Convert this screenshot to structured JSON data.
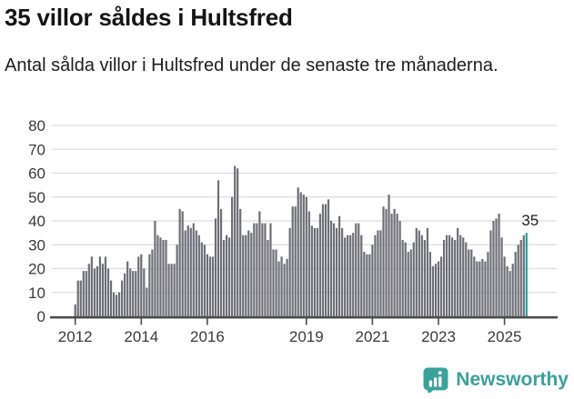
{
  "header": {
    "title": "35 villor såldes i Hultsfred",
    "subtitle": "Antal sålda villor i Hultsfred under de senaste tre månaderna."
  },
  "chart_data": {
    "type": "bar",
    "title": "35 villor såldes i Hultsfred",
    "xlabel": "",
    "ylabel": "",
    "ylim": [
      0,
      80
    ],
    "yticks": [
      0,
      10,
      20,
      30,
      40,
      50,
      60,
      70,
      80
    ],
    "grid": true,
    "x_unit": "month",
    "xticks": [
      {
        "label": "2012",
        "month_index": 0
      },
      {
        "label": "2014",
        "month_index": 24
      },
      {
        "label": "2016",
        "month_index": 48
      },
      {
        "label": "2019",
        "month_index": 84
      },
      {
        "label": "2021",
        "month_index": 108
      },
      {
        "label": "2023",
        "month_index": 132
      },
      {
        "label": "2025",
        "month_index": 156
      }
    ],
    "values": [
      5,
      15,
      15,
      19,
      19,
      22,
      25,
      20,
      21,
      25,
      22,
      25,
      20,
      15,
      10,
      9,
      10,
      15,
      18,
      23,
      20,
      19,
      19,
      25,
      26,
      20,
      12,
      26,
      28,
      40,
      34,
      33,
      32,
      32,
      22,
      22,
      22,
      30,
      45,
      44,
      36,
      38,
      37,
      39,
      36,
      34,
      31,
      30,
      26,
      25,
      25,
      41,
      57,
      45,
      32,
      34,
      33,
      50,
      63,
      62,
      45,
      34,
      34,
      36,
      35,
      39,
      39,
      44,
      39,
      39,
      32,
      39,
      28,
      28,
      23,
      25,
      22,
      24,
      37,
      46,
      46,
      54,
      52,
      51,
      50,
      44,
      38,
      37,
      37,
      43,
      47,
      47,
      49,
      40,
      39,
      37,
      42,
      37,
      33,
      34,
      34,
      35,
      39,
      39,
      34,
      27,
      26,
      26,
      30,
      34,
      36,
      36,
      46,
      45,
      51,
      43,
      45,
      43,
      40,
      32,
      31,
      27,
      28,
      31,
      37,
      36,
      34,
      32,
      37,
      27,
      21,
      22,
      23,
      25,
      32,
      34,
      34,
      33,
      32,
      37,
      34,
      33,
      31,
      28,
      28,
      25,
      23,
      23,
      24,
      23,
      27,
      36,
      40,
      41,
      43,
      33,
      25,
      21,
      19,
      22,
      27,
      30,
      32,
      34,
      35
    ],
    "bar_color": "#6e6e77",
    "gridline_color": "#dcdcdc",
    "axis_color": "#4c4c4c",
    "highlight": {
      "index": 164,
      "value": 35,
      "label": "35",
      "color": "#289c9e"
    }
  },
  "footer": {
    "brand": "Newsworthy",
    "brand_color": "#3aa19b",
    "logo_icon": "newsworthy-speech-bubble-bar-chart-icon"
  }
}
